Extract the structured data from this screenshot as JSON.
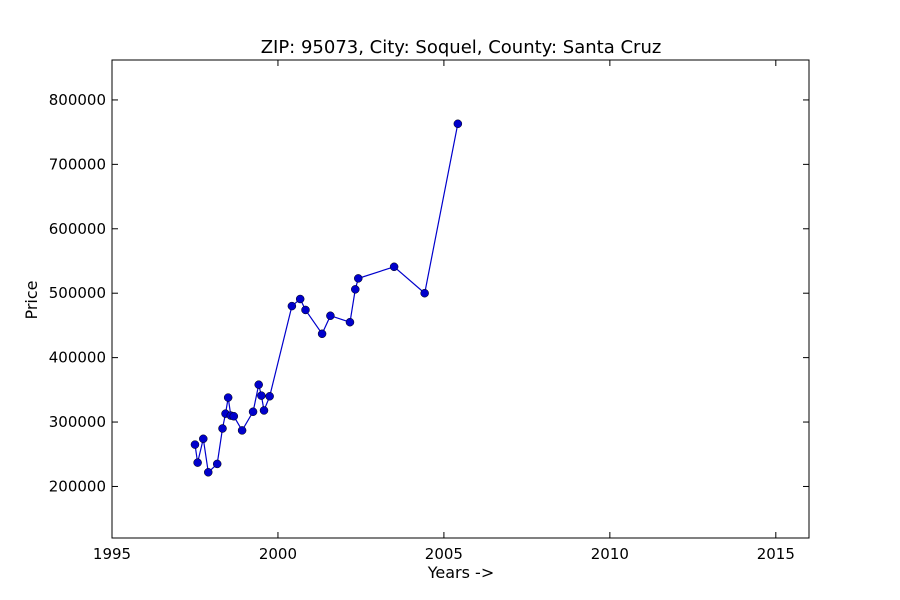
{
  "chart_data": {
    "type": "line",
    "title": "ZIP: 95073, City: Soquel, County: Santa Cruz",
    "xlabel": "Years ->",
    "ylabel": "Price",
    "xlim": [
      1995,
      2016
    ],
    "ylim": [
      120000,
      862000
    ],
    "x_ticks": [
      1995,
      2000,
      2005,
      2010,
      2015
    ],
    "x_tick_labels": [
      "1995",
      "2000",
      "2005",
      "2010",
      "2015"
    ],
    "y_ticks": [
      200000,
      300000,
      400000,
      500000,
      600000,
      700000,
      800000
    ],
    "y_tick_labels": [
      "200000",
      "300000",
      "400000",
      "500000",
      "600000",
      "700000",
      "800000"
    ],
    "grid": false,
    "legend": false,
    "series": [
      {
        "color": "#0000cc",
        "marker": "circle",
        "x": [
          1997.5,
          1997.58,
          1997.75,
          1997.9,
          1998.17,
          1998.33,
          1998.42,
          1998.5,
          1998.58,
          1998.67,
          1998.92,
          1999.25,
          1999.42,
          1999.5,
          1999.58,
          1999.75,
          2000.42,
          2000.67,
          2000.83,
          2001.33,
          2001.58,
          2002.17,
          2002.33,
          2002.42,
          2003.5,
          2004.42,
          2005.42
        ],
        "y": [
          265000,
          237000,
          274000,
          222000,
          235000,
          290000,
          313000,
          338000,
          310000,
          309000,
          287000,
          316000,
          358000,
          341000,
          318000,
          340000,
          480000,
          491000,
          474000,
          437000,
          465000,
          455000,
          506000,
          523000,
          541000,
          500000,
          763000
        ]
      }
    ]
  }
}
